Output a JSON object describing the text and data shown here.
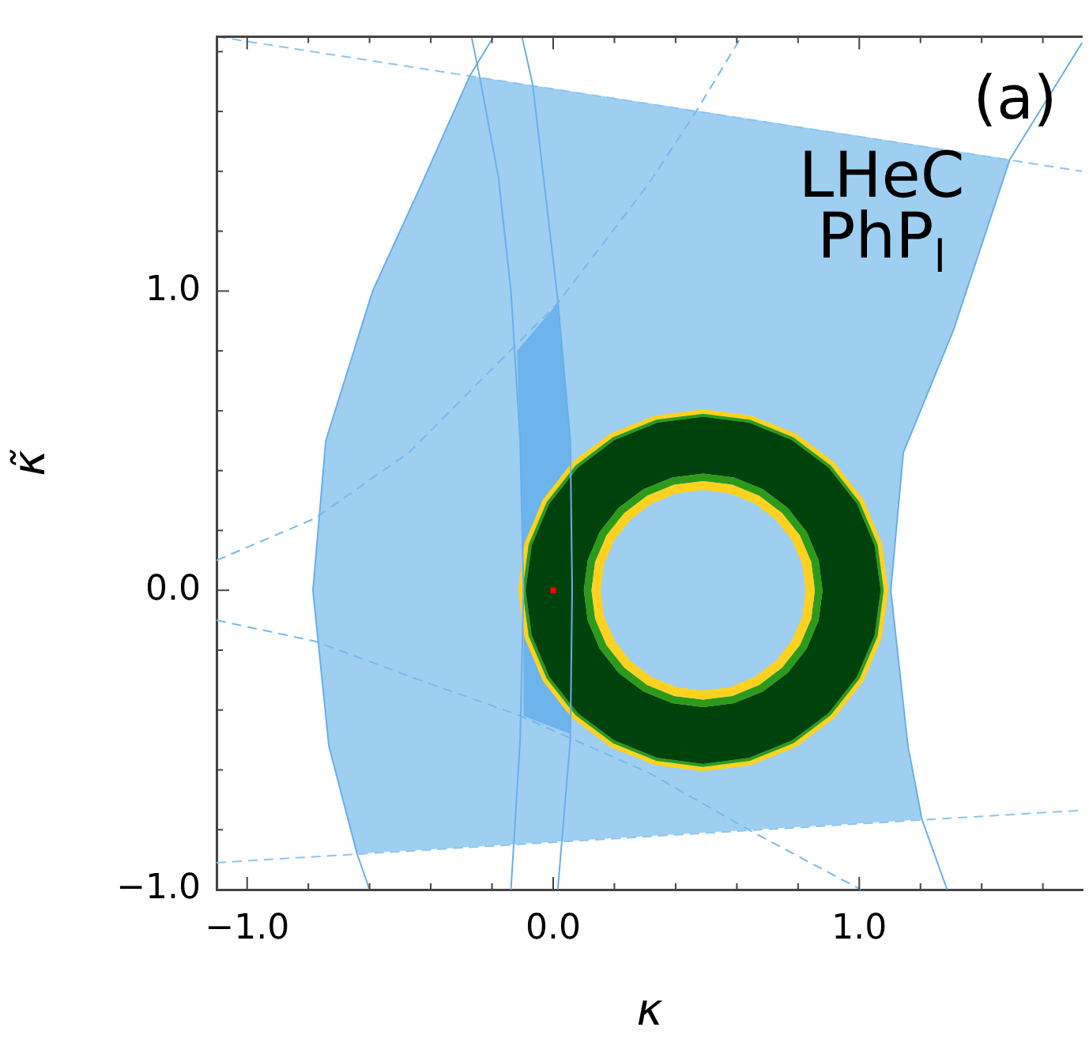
{
  "chart_data": {
    "type": "area",
    "xlabel": "κ",
    "ylabel": "κ̃",
    "annotations": [
      "(a)",
      "LHeC",
      "PhP$_{l}$"
    ],
    "xlim": [
      -1.1,
      1.73
    ],
    "ylim": [
      -1.0,
      1.85
    ],
    "xticks": [
      {
        "value": -1.0,
        "label": "−1.0"
      },
      {
        "value": -0.8,
        "label": null
      },
      {
        "value": -0.6,
        "label": null
      },
      {
        "value": -0.4,
        "label": null
      },
      {
        "value": -0.2,
        "label": null
      },
      {
        "value": 0.0,
        "label": "0.0"
      },
      {
        "value": 0.2,
        "label": null
      },
      {
        "value": 0.4,
        "label": null
      },
      {
        "value": 0.6,
        "label": null
      },
      {
        "value": 0.8,
        "label": null
      },
      {
        "value": 1.0,
        "label": "1.0"
      },
      {
        "value": 1.2,
        "label": null
      },
      {
        "value": 1.4,
        "label": null
      },
      {
        "value": 1.6,
        "label": null
      }
    ],
    "yticks": [
      {
        "value": -1.0,
        "label": "−1.0"
      },
      {
        "value": -0.8,
        "label": null
      },
      {
        "value": -0.6,
        "label": null
      },
      {
        "value": -0.4,
        "label": null
      },
      {
        "value": -0.2,
        "label": null
      },
      {
        "value": 0.0,
        "label": "0.0"
      },
      {
        "value": 0.2,
        "label": null
      },
      {
        "value": 0.4,
        "label": null
      },
      {
        "value": 0.6,
        "label": null
      },
      {
        "value": 0.8,
        "label": null
      },
      {
        "value": 1.0,
        "label": "1.0"
      },
      {
        "value": 1.2,
        "label": null
      },
      {
        "value": 1.4,
        "label": null
      },
      {
        "value": 1.6,
        "label": null
      },
      {
        "value": 1.8,
        "label": null
      }
    ],
    "grid": false,
    "legend": false,
    "marker": "none",
    "series": [
      {
        "color": "#9ecff1",
        "x": [
          -0.272,
          1.492,
          1.308,
          1.144,
          1.103,
          1.159,
          1.205,
          -0.641,
          -0.733,
          -0.785,
          -0.743,
          -0.59,
          -0.42,
          -0.272
        ],
        "values": [
          1.72,
          1.44,
          0.87,
          0.46,
          0,
          -0.52,
          -0.766,
          -0.88,
          -0.52,
          0,
          0.5,
          1.0,
          1.38,
          1.72
        ]
      },
      {
        "color": "#6db3ec",
        "x": [
          -0.118,
          0.015,
          0.056,
          0.056,
          -0.097,
          -0.097,
          -0.108,
          -0.118
        ],
        "values": [
          0.8,
          0.96,
          0.5,
          -0.48,
          -0.42,
          0,
          0.5,
          0.8
        ]
      },
      {
        "type": "line",
        "line_style": "dashed",
        "color": "#8cc4f0",
        "x": [
          -1.1,
          1.728
        ],
        "values": [
          1.85,
          1.4
        ]
      },
      {
        "type": "line",
        "line_style": "dashed",
        "color": "#8cc4f0",
        "x": [
          -1.1,
          1.728
        ],
        "values": [
          -0.91,
          -0.735
        ]
      },
      {
        "type": "line",
        "line_style": "dashed",
        "color": "#7ab8ec",
        "x": [
          -1.1,
          -0.779,
          -0.472,
          0.015,
          0.313,
          0.467,
          0.615
        ],
        "values": [
          0.1,
          0.24,
          0.46,
          0.96,
          1.36,
          1.6,
          1.85
        ]
      },
      {
        "type": "line",
        "line_style": "dashed",
        "color": "#7ab8ec",
        "x": [
          -1.1,
          -0.779,
          -0.436,
          -0.118,
          0.313,
          0.656,
          1.005
        ],
        "values": [
          -0.1,
          -0.17,
          -0.3,
          -0.415,
          -0.61,
          -0.81,
          -1.0
        ]
      },
      {
        "type": "area",
        "color": "#ffd21f",
        "x": [
          1.095,
          1.074,
          1.014,
          0.918,
          0.793,
          0.647,
          0.49,
          0.333,
          0.187,
          0.062,
          -0.034,
          -0.094,
          -0.115,
          -0.094,
          -0.034,
          0.062,
          0.187,
          0.333,
          0.49,
          0.647,
          0.793,
          0.918,
          1.014,
          1.074,
          1.095,
          1.08,
          1.06,
          1.001,
          0.907,
          0.785,
          0.643,
          0.49,
          0.337,
          0.195,
          0.073,
          -0.021,
          -0.08,
          -0.1,
          -0.08,
          -0.021,
          0.073,
          0.195,
          0.337,
          0.49,
          0.643,
          0.785,
          0.907,
          1.001,
          1.06,
          1.08
        ],
        "values": [
          0,
          0.157,
          0.303,
          0.428,
          0.524,
          0.584,
          0.605,
          0.584,
          0.524,
          0.428,
          0.303,
          0.157,
          0,
          -0.157,
          -0.303,
          -0.428,
          -0.524,
          -0.584,
          -0.605,
          -0.584,
          -0.524,
          -0.428,
          -0.303,
          -0.157,
          0,
          0,
          -0.153,
          -0.295,
          -0.417,
          -0.511,
          -0.57,
          -0.59,
          -0.57,
          -0.511,
          -0.417,
          -0.295,
          -0.153,
          0,
          0.153,
          0.295,
          0.417,
          0.511,
          0.57,
          0.59,
          0.57,
          0.511,
          0.417,
          0.295,
          0.153,
          0
        ]
      },
      {
        "type": "area",
        "color": "#2e9a1a",
        "x": [
          1.08,
          1.06,
          1.001,
          0.907,
          0.785,
          0.643,
          0.49,
          0.337,
          0.195,
          0.073,
          -0.021,
          -0.08,
          -0.1,
          -0.08,
          -0.021,
          0.073,
          0.195,
          0.337,
          0.49,
          0.643,
          0.785,
          0.907,
          1.001,
          1.06,
          1.08,
          1.07,
          1.05,
          0.992,
          0.9,
          0.78,
          0.64,
          0.49,
          0.34,
          0.2,
          0.08,
          -0.012,
          -0.07,
          -0.09,
          -0.07,
          -0.012,
          0.08,
          0.2,
          0.34,
          0.49,
          0.64,
          0.78,
          0.9,
          0.992,
          1.05,
          1.07
        ],
        "values": [
          0,
          0.153,
          0.295,
          0.417,
          0.511,
          0.57,
          0.59,
          0.57,
          0.511,
          0.417,
          0.295,
          0.153,
          0,
          -0.153,
          -0.295,
          -0.417,
          -0.511,
          -0.57,
          -0.59,
          -0.57,
          -0.511,
          -0.417,
          -0.295,
          -0.153,
          0,
          0,
          -0.15,
          -0.29,
          -0.41,
          -0.502,
          -0.56,
          -0.58,
          -0.56,
          -0.502,
          -0.41,
          -0.29,
          -0.15,
          0,
          0.15,
          0.29,
          0.41,
          0.502,
          0.56,
          0.58,
          0.56,
          0.502,
          0.41,
          0.29,
          0.15,
          0
        ]
      },
      {
        "type": "area",
        "color": "#00420b",
        "x": [
          1.07,
          1.05,
          0.992,
          0.9,
          0.78,
          0.64,
          0.49,
          0.34,
          0.2,
          0.08,
          -0.012,
          -0.07,
          -0.09,
          -0.07,
          -0.012,
          0.08,
          0.2,
          0.34,
          0.49,
          0.64,
          0.78,
          0.9,
          0.992,
          1.05,
          1.07,
          0.88,
          0.867,
          0.828,
          0.766,
          0.685,
          0.591,
          0.49,
          0.389,
          0.295,
          0.214,
          0.152,
          0.113,
          0.1,
          0.113,
          0.152,
          0.214,
          0.295,
          0.389,
          0.49,
          0.591,
          0.685,
          0.766,
          0.828,
          0.867,
          0.88
        ],
        "values": [
          0,
          0.15,
          0.29,
          0.41,
          0.502,
          0.56,
          0.58,
          0.56,
          0.502,
          0.41,
          0.29,
          0.15,
          0,
          -0.15,
          -0.29,
          -0.41,
          -0.502,
          -0.56,
          -0.58,
          -0.56,
          -0.502,
          -0.41,
          -0.29,
          -0.15,
          0,
          0,
          -0.101,
          -0.195,
          -0.276,
          -0.338,
          -0.377,
          -0.39,
          -0.377,
          -0.338,
          -0.276,
          -0.195,
          -0.101,
          0,
          0.101,
          0.195,
          0.276,
          0.338,
          0.377,
          0.39,
          0.377,
          0.338,
          0.276,
          0.195,
          0.101,
          0
        ]
      },
      {
        "type": "area",
        "color": "#2e9a1a",
        "x": [
          0.88,
          0.867,
          0.828,
          0.766,
          0.685,
          0.591,
          0.49,
          0.389,
          0.295,
          0.214,
          0.152,
          0.113,
          0.1,
          0.113,
          0.152,
          0.214,
          0.295,
          0.389,
          0.49,
          0.591,
          0.685,
          0.766,
          0.828,
          0.867,
          0.88,
          0.855,
          0.843,
          0.806,
          0.748,
          0.673,
          0.585,
          0.49,
          0.395,
          0.307,
          0.232,
          0.174,
          0.137,
          0.125,
          0.137,
          0.174,
          0.232,
          0.307,
          0.395,
          0.49,
          0.585,
          0.673,
          0.748,
          0.806,
          0.843,
          0.855
        ],
        "values": [
          0,
          0.101,
          0.195,
          0.276,
          0.338,
          0.377,
          0.39,
          0.377,
          0.338,
          0.276,
          0.195,
          0.101,
          0,
          -0.101,
          -0.195,
          -0.276,
          -0.338,
          -0.377,
          -0.39,
          -0.377,
          -0.338,
          -0.276,
          -0.195,
          -0.101,
          0,
          0,
          -0.095,
          -0.183,
          -0.258,
          -0.316,
          -0.353,
          -0.365,
          -0.353,
          -0.316,
          -0.258,
          -0.183,
          -0.095,
          0,
          0.095,
          0.183,
          0.258,
          0.316,
          0.353,
          0.365,
          0.353,
          0.316,
          0.258,
          0.183,
          0.095,
          0
        ]
      },
      {
        "type": "area",
        "color": "#ffd21f",
        "x": [
          0.855,
          0.843,
          0.806,
          0.748,
          0.673,
          0.585,
          0.49,
          0.395,
          0.307,
          0.232,
          0.174,
          0.137,
          0.125,
          0.137,
          0.174,
          0.232,
          0.307,
          0.395,
          0.49,
          0.585,
          0.673,
          0.748,
          0.806,
          0.843,
          0.855,
          0.825,
          0.814,
          0.78,
          0.727,
          0.658,
          0.577,
          0.49,
          0.403,
          0.322,
          0.253,
          0.2,
          0.166,
          0.155,
          0.166,
          0.2,
          0.253,
          0.322,
          0.403,
          0.49,
          0.577,
          0.658,
          0.727,
          0.78,
          0.814,
          0.825
        ],
        "values": [
          0,
          0.095,
          0.183,
          0.258,
          0.316,
          0.353,
          0.365,
          0.353,
          0.316,
          0.258,
          0.183,
          0.095,
          0,
          -0.095,
          -0.183,
          -0.258,
          -0.316,
          -0.353,
          -0.365,
          -0.353,
          -0.316,
          -0.258,
          -0.183,
          -0.095,
          0,
          0,
          -0.087,
          -0.168,
          -0.237,
          -0.29,
          -0.324,
          -0.335,
          -0.324,
          -0.29,
          -0.237,
          -0.168,
          -0.087,
          0,
          0.087,
          0.168,
          0.237,
          0.29,
          0.324,
          0.335,
          0.324,
          0.29,
          0.237,
          0.168,
          0.087,
          0
        ]
      },
      {
        "type": "line",
        "line_style": "solid",
        "color": "#6aaee8",
        "x": [
          -0.195,
          -0.272,
          -0.42,
          -0.59,
          -0.743,
          -0.785,
          -0.733,
          -0.641,
          -0.6
        ],
        "values": [
          1.85,
          1.72,
          1.38,
          1.0,
          0.5,
          0,
          -0.52,
          -0.88,
          -1.0
        ]
      },
      {
        "type": "line",
        "line_style": "solid",
        "color": "#6aaee8",
        "x": [
          1.728,
          1.492,
          1.308,
          1.144,
          1.103,
          1.159,
          1.205,
          1.287
        ],
        "values": [
          1.83,
          1.44,
          0.87,
          0.46,
          0,
          -0.52,
          -0.766,
          -1.0
        ]
      },
      {
        "type": "line",
        "line_style": "solid",
        "color": "#6aaee8",
        "x": [
          -0.267,
          -0.241,
          -0.179,
          -0.138,
          -0.108,
          -0.097,
          -0.108,
          -0.138
        ],
        "values": [
          1.85,
          1.72,
          1.38,
          1.0,
          0.5,
          0,
          -0.5,
          -1.0
        ]
      },
      {
        "type": "line",
        "line_style": "solid",
        "color": "#6aaee8",
        "x": [
          -0.102,
          -0.067,
          0.015,
          0.056,
          0.062,
          0.056,
          0.015
        ],
        "values": [
          1.85,
          1.69,
          0.97,
          0.5,
          0,
          -0.5,
          -1.0
        ]
      },
      {
        "type": "scatter",
        "marker": "square",
        "color": "#ff0000",
        "x": [
          0
        ],
        "values": [
          0
        ]
      }
    ]
  }
}
